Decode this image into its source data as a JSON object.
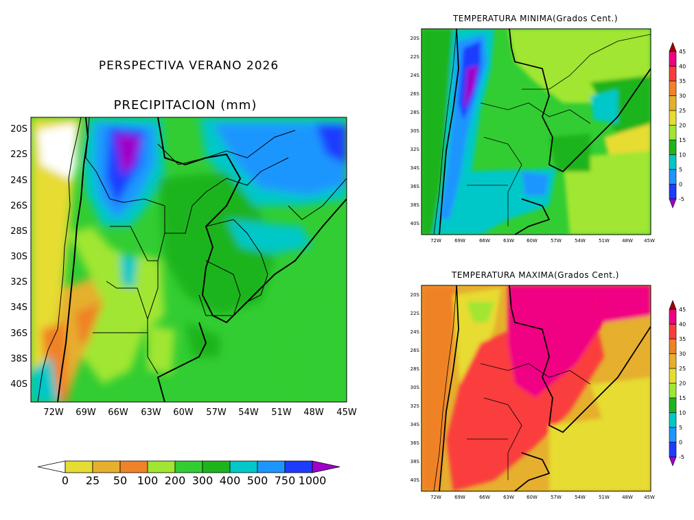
{
  "header": {
    "title": "PERSPECTIVA VERANO 2026",
    "precip_title": "PRECIPITACION (mm)"
  },
  "map_main": {
    "lat_labels": [
      "20S",
      "22S",
      "24S",
      "26S",
      "28S",
      "30S",
      "32S",
      "34S",
      "36S",
      "38S",
      "40S"
    ],
    "lon_labels": [
      "72W",
      "69W",
      "66W",
      "63W",
      "60W",
      "57W",
      "54W",
      "51W",
      "48W",
      "45W"
    ]
  },
  "map_min": {
    "title": "TEMPERATURA MINIMA(Grados Cent.)",
    "lat_labels": [
      "20S",
      "22S",
      "24S",
      "26S",
      "28S",
      "30S",
      "32S",
      "34S",
      "36S",
      "38S",
      "40S"
    ],
    "lon_labels": [
      "72W",
      "69W",
      "66W",
      "63W",
      "60W",
      "57W",
      "54W",
      "51W",
      "48W",
      "45W"
    ]
  },
  "map_max": {
    "title": "TEMPERATURA MAXIMA(Grados Cent.)",
    "lat_labels": [
      "20S",
      "22S",
      "24S",
      "26S",
      "28S",
      "30S",
      "32S",
      "34S",
      "36S",
      "38S",
      "40S"
    ],
    "lon_labels": [
      "72W",
      "69W",
      "66W",
      "63W",
      "60W",
      "57W",
      "54W",
      "51W",
      "48W",
      "45W"
    ]
  },
  "precip_legend": {
    "labels": [
      "0",
      "25",
      "50",
      "100",
      "200",
      "300",
      "400",
      "500",
      "750",
      "1000"
    ],
    "colors": [
      "#ffffff",
      "#e6dc32",
      "#e6af2d",
      "#f08228",
      "#a0e632",
      "#32cd32",
      "#1eb41e",
      "#00c8c8",
      "#1e96ff",
      "#1e3cff",
      "#a000c8"
    ]
  },
  "temp_legend": {
    "labels": [
      "-5",
      "0",
      "5",
      "10",
      "15",
      "20",
      "25",
      "30",
      "35",
      "40",
      "45"
    ],
    "colors": [
      "#a000c8",
      "#1e3cff",
      "#1e96ff",
      "#00c8c8",
      "#1eb41e",
      "#a0e632",
      "#e6dc32",
      "#e6af2d",
      "#f08228",
      "#fa3c3c",
      "#f00082",
      "#a00000"
    ]
  }
}
